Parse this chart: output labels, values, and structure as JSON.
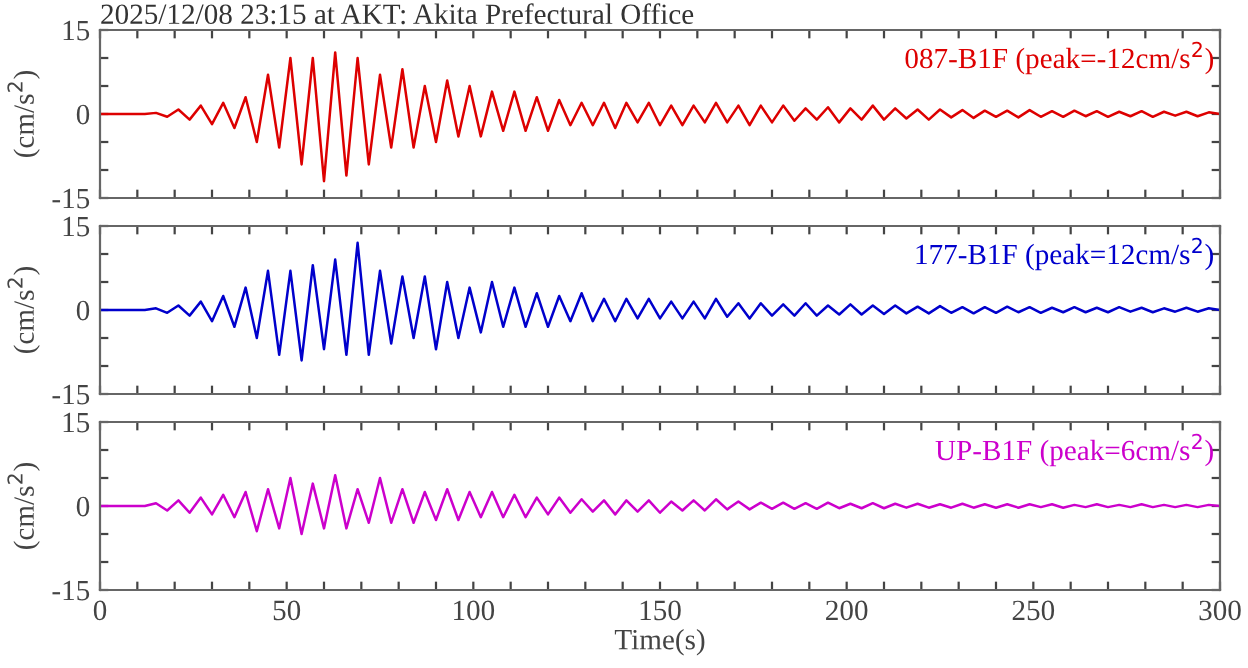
{
  "chart_data": [
    {
      "type": "line",
      "title": "2025/12/08 23:15 at AKT: Akita Prefectural Office",
      "ylabel": "(cm/s$^{2}$)",
      "tick_labels": "y",
      "grid": false,
      "legend": false,
      "xlim": [
        0,
        300
      ],
      "ylim": [
        -15,
        15
      ],
      "xticks": [
        {
          "value": 0,
          "label": null
        },
        {
          "value": 10,
          "label": null
        },
        {
          "value": 20,
          "label": null
        },
        {
          "value": 30,
          "label": null
        },
        {
          "value": 40,
          "label": null
        },
        {
          "value": 50,
          "label": null
        },
        {
          "value": 60,
          "label": null
        },
        {
          "value": 70,
          "label": null
        },
        {
          "value": 80,
          "label": null
        },
        {
          "value": 90,
          "label": null
        },
        {
          "value": 100,
          "label": null
        },
        {
          "value": 110,
          "label": null
        },
        {
          "value": 120,
          "label": null
        },
        {
          "value": 130,
          "label": null
        },
        {
          "value": 140,
          "label": null
        },
        {
          "value": 150,
          "label": null
        },
        {
          "value": 160,
          "label": null
        },
        {
          "value": 170,
          "label": null
        },
        {
          "value": 180,
          "label": null
        },
        {
          "value": 190,
          "label": null
        },
        {
          "value": 200,
          "label": null
        },
        {
          "value": 210,
          "label": null
        },
        {
          "value": 220,
          "label": null
        },
        {
          "value": 230,
          "label": null
        },
        {
          "value": 240,
          "label": null
        },
        {
          "value": 250,
          "label": null
        },
        {
          "value": 260,
          "label": null
        },
        {
          "value": 270,
          "label": null
        },
        {
          "value": 280,
          "label": null
        },
        {
          "value": 290,
          "label": null
        },
        {
          "value": 300,
          "label": null
        }
      ],
      "yticks": [
        -15,
        {
          "value": -10,
          "label": null
        },
        {
          "value": -5,
          "label": null
        },
        0,
        {
          "value": 5,
          "label": null
        },
        {
          "value": 10,
          "label": null
        },
        15
      ],
      "x": [
        0,
        3,
        6,
        9,
        12,
        15,
        18,
        21,
        24,
        27,
        30,
        33,
        36,
        39,
        42,
        45,
        48,
        51,
        54,
        57,
        60,
        63,
        66,
        69,
        72,
        75,
        78,
        81,
        84,
        87,
        90,
        93,
        96,
        99,
        102,
        105,
        108,
        111,
        114,
        117,
        120,
        123,
        126,
        129,
        132,
        135,
        138,
        141,
        144,
        147,
        150,
        153,
        156,
        159,
        162,
        165,
        168,
        171,
        174,
        177,
        180,
        183,
        186,
        189,
        192,
        195,
        198,
        201,
        204,
        207,
        210,
        213,
        216,
        219,
        222,
        225,
        228,
        231,
        234,
        237,
        240,
        243,
        246,
        249,
        252,
        255,
        258,
        261,
        264,
        267,
        270,
        273,
        276,
        279,
        282,
        285,
        288,
        291,
        294,
        297,
        300
      ],
      "series": [
        {
          "name": "087-B1F (peak=-12cm/s$^{2}$)",
          "color": "#dd0000",
          "values": [
            0,
            0,
            0,
            0,
            0,
            0.2,
            -0.5,
            0.8,
            -1,
            1.5,
            -1.8,
            2,
            -2.5,
            3,
            -5,
            7,
            -6,
            10,
            -9,
            10,
            -12,
            11,
            -11,
            10,
            -9,
            7,
            -6,
            8,
            -6,
            5,
            -5,
            6,
            -4,
            5,
            -4,
            4,
            -3,
            4,
            -3,
            3,
            -3,
            2.5,
            -2,
            2,
            -2,
            2,
            -2.5,
            2,
            -1.5,
            2,
            -2,
            1.5,
            -2,
            1.5,
            -1.5,
            2,
            -1.5,
            1.5,
            -2,
            1.5,
            -1.5,
            1.5,
            -1.2,
            1,
            -1,
            1.2,
            -1.5,
            1,
            -1,
            1.5,
            -1,
            1,
            -0.8,
            0.8,
            -1,
            0.8,
            -0.6,
            0.7,
            -0.7,
            0.6,
            -0.5,
            0.6,
            -0.6,
            0.7,
            -0.5,
            0.5,
            -0.5,
            0.6,
            -0.4,
            0.5,
            -0.5,
            0.4,
            -0.4,
            0.5,
            -0.5,
            0.4,
            -0.3,
            0.4,
            -0.4,
            0.3,
            0
          ]
        }
      ]
    },
    {
      "type": "line",
      "ylabel": "(cm/s$^{2}$)",
      "tick_labels": "y",
      "grid": false,
      "legend": false,
      "xlim": [
        0,
        300
      ],
      "ylim": [
        -15,
        15
      ],
      "xticks": [
        {
          "value": 0,
          "label": null
        },
        {
          "value": 10,
          "label": null
        },
        {
          "value": 20,
          "label": null
        },
        {
          "value": 30,
          "label": null
        },
        {
          "value": 40,
          "label": null
        },
        {
          "value": 50,
          "label": null
        },
        {
          "value": 60,
          "label": null
        },
        {
          "value": 70,
          "label": null
        },
        {
          "value": 80,
          "label": null
        },
        {
          "value": 90,
          "label": null
        },
        {
          "value": 100,
          "label": null
        },
        {
          "value": 110,
          "label": null
        },
        {
          "value": 120,
          "label": null
        },
        {
          "value": 130,
          "label": null
        },
        {
          "value": 140,
          "label": null
        },
        {
          "value": 150,
          "label": null
        },
        {
          "value": 160,
          "label": null
        },
        {
          "value": 170,
          "label": null
        },
        {
          "value": 180,
          "label": null
        },
        {
          "value": 190,
          "label": null
        },
        {
          "value": 200,
          "label": null
        },
        {
          "value": 210,
          "label": null
        },
        {
          "value": 220,
          "label": null
        },
        {
          "value": 230,
          "label": null
        },
        {
          "value": 240,
          "label": null
        },
        {
          "value": 250,
          "label": null
        },
        {
          "value": 260,
          "label": null
        },
        {
          "value": 270,
          "label": null
        },
        {
          "value": 280,
          "label": null
        },
        {
          "value": 290,
          "label": null
        },
        {
          "value": 300,
          "label": null
        }
      ],
      "yticks": [
        -15,
        {
          "value": -10,
          "label": null
        },
        {
          "value": -5,
          "label": null
        },
        0,
        {
          "value": 5,
          "label": null
        },
        {
          "value": 10,
          "label": null
        },
        15
      ],
      "x": [
        0,
        3,
        6,
        9,
        12,
        15,
        18,
        21,
        24,
        27,
        30,
        33,
        36,
        39,
        42,
        45,
        48,
        51,
        54,
        57,
        60,
        63,
        66,
        69,
        72,
        75,
        78,
        81,
        84,
        87,
        90,
        93,
        96,
        99,
        102,
        105,
        108,
        111,
        114,
        117,
        120,
        123,
        126,
        129,
        132,
        135,
        138,
        141,
        144,
        147,
        150,
        153,
        156,
        159,
        162,
        165,
        168,
        171,
        174,
        177,
        180,
        183,
        186,
        189,
        192,
        195,
        198,
        201,
        204,
        207,
        210,
        213,
        216,
        219,
        222,
        225,
        228,
        231,
        234,
        237,
        240,
        243,
        246,
        249,
        252,
        255,
        258,
        261,
        264,
        267,
        270,
        273,
        276,
        279,
        282,
        285,
        288,
        291,
        294,
        297,
        300
      ],
      "series": [
        {
          "name": "177-B1F (peak=12cm/s$^{2}$)",
          "color": "#0000cc",
          "values": [
            0,
            0,
            0,
            0,
            0,
            0.3,
            -0.5,
            0.8,
            -1,
            1.5,
            -2,
            2.5,
            -3,
            4,
            -5,
            7,
            -8,
            7,
            -9,
            8,
            -7,
            9,
            -8,
            12,
            -8,
            7,
            -6,
            6,
            -5,
            6,
            -7,
            5,
            -5,
            4,
            -4,
            5,
            -3,
            4,
            -3,
            3,
            -3,
            2.5,
            -2,
            3,
            -2,
            2,
            -2,
            2,
            -1.5,
            2,
            -1.5,
            1.5,
            -1.5,
            1.5,
            -1.5,
            2,
            -1.2,
            1.2,
            -1.5,
            1.2,
            -1,
            1,
            -1,
            1.2,
            -1,
            0.8,
            -0.8,
            1,
            -0.8,
            0.8,
            -0.7,
            0.8,
            -0.6,
            0.6,
            -0.6,
            0.7,
            -0.5,
            0.5,
            -0.6,
            0.5,
            -0.5,
            0.6,
            -0.4,
            0.5,
            -0.5,
            0.4,
            -0.4,
            0.5,
            -0.4,
            0.4,
            -0.4,
            0.5,
            -0.3,
            0.4,
            -0.4,
            0.3,
            -0.3,
            0.4,
            -0.3,
            0.3,
            0
          ]
        }
      ]
    },
    {
      "type": "line",
      "ylabel": "(cm/s$^{2}$)",
      "xlabel": "Time(s)",
      "grid": false,
      "legend": false,
      "xlim": [
        0,
        300
      ],
      "ylim": [
        -15,
        15
      ],
      "xticks": [
        0,
        {
          "value": 10,
          "label": null
        },
        {
          "value": 20,
          "label": null
        },
        {
          "value": 30,
          "label": null
        },
        {
          "value": 40,
          "label": null
        },
        50,
        {
          "value": 60,
          "label": null
        },
        {
          "value": 70,
          "label": null
        },
        {
          "value": 80,
          "label": null
        },
        {
          "value": 90,
          "label": null
        },
        100,
        {
          "value": 110,
          "label": null
        },
        {
          "value": 120,
          "label": null
        },
        {
          "value": 130,
          "label": null
        },
        {
          "value": 140,
          "label": null
        },
        150,
        {
          "value": 160,
          "label": null
        },
        {
          "value": 170,
          "label": null
        },
        {
          "value": 180,
          "label": null
        },
        {
          "value": 190,
          "label": null
        },
        200,
        {
          "value": 210,
          "label": null
        },
        {
          "value": 220,
          "label": null
        },
        {
          "value": 230,
          "label": null
        },
        {
          "value": 240,
          "label": null
        },
        250,
        {
          "value": 260,
          "label": null
        },
        {
          "value": 270,
          "label": null
        },
        {
          "value": 280,
          "label": null
        },
        {
          "value": 290,
          "label": null
        },
        300
      ],
      "yticks": [
        -15,
        {
          "value": -10,
          "label": null
        },
        {
          "value": -5,
          "label": null
        },
        0,
        {
          "value": 5,
          "label": null
        },
        {
          "value": 10,
          "label": null
        },
        15
      ],
      "x": [
        0,
        3,
        6,
        9,
        12,
        15,
        18,
        21,
        24,
        27,
        30,
        33,
        36,
        39,
        42,
        45,
        48,
        51,
        54,
        57,
        60,
        63,
        66,
        69,
        72,
        75,
        78,
        81,
        84,
        87,
        90,
        93,
        96,
        99,
        102,
        105,
        108,
        111,
        114,
        117,
        120,
        123,
        126,
        129,
        132,
        135,
        138,
        141,
        144,
        147,
        150,
        153,
        156,
        159,
        162,
        165,
        168,
        171,
        174,
        177,
        180,
        183,
        186,
        189,
        192,
        195,
        198,
        201,
        204,
        207,
        210,
        213,
        216,
        219,
        222,
        225,
        228,
        231,
        234,
        237,
        240,
        243,
        246,
        249,
        252,
        255,
        258,
        261,
        264,
        267,
        270,
        273,
        276,
        279,
        282,
        285,
        288,
        291,
        294,
        297,
        300
      ],
      "series": [
        {
          "name": "UP-B1F (peak=6cm/s$^{2}$)",
          "color": "#cc00cc",
          "values": [
            0,
            0,
            0,
            0,
            0,
            0.5,
            -0.8,
            1,
            -1.2,
            1.5,
            -1.5,
            2,
            -2,
            2.5,
            -4.5,
            3,
            -4,
            5,
            -5,
            4,
            -4,
            5.5,
            -4,
            3,
            -3,
            5,
            -3,
            3,
            -3,
            2.5,
            -2.5,
            3,
            -2.5,
            2.5,
            -2,
            2.5,
            -2,
            2,
            -2,
            1.5,
            -1.5,
            1.5,
            -1.2,
            1.2,
            -1,
            1,
            -1.5,
            1,
            -1,
            1,
            -1.2,
            0.8,
            -0.8,
            1,
            -0.8,
            1.2,
            -0.6,
            0.8,
            -0.6,
            0.6,
            -0.5,
            0.6,
            -0.5,
            0.5,
            -0.5,
            0.6,
            -0.4,
            0.4,
            -0.4,
            0.5,
            -0.4,
            0.4,
            -0.3,
            0.4,
            -0.3,
            0.3,
            -0.3,
            0.4,
            -0.3,
            0.3,
            -0.3,
            0.3,
            -0.3,
            0.3,
            -0.2,
            0.3,
            -0.3,
            0.2,
            -0.2,
            0.3,
            -0.2,
            0.2,
            -0.2,
            0.3,
            -0.2,
            0.2,
            -0.2,
            0.2,
            -0.2,
            0.2,
            0
          ]
        }
      ]
    }
  ]
}
